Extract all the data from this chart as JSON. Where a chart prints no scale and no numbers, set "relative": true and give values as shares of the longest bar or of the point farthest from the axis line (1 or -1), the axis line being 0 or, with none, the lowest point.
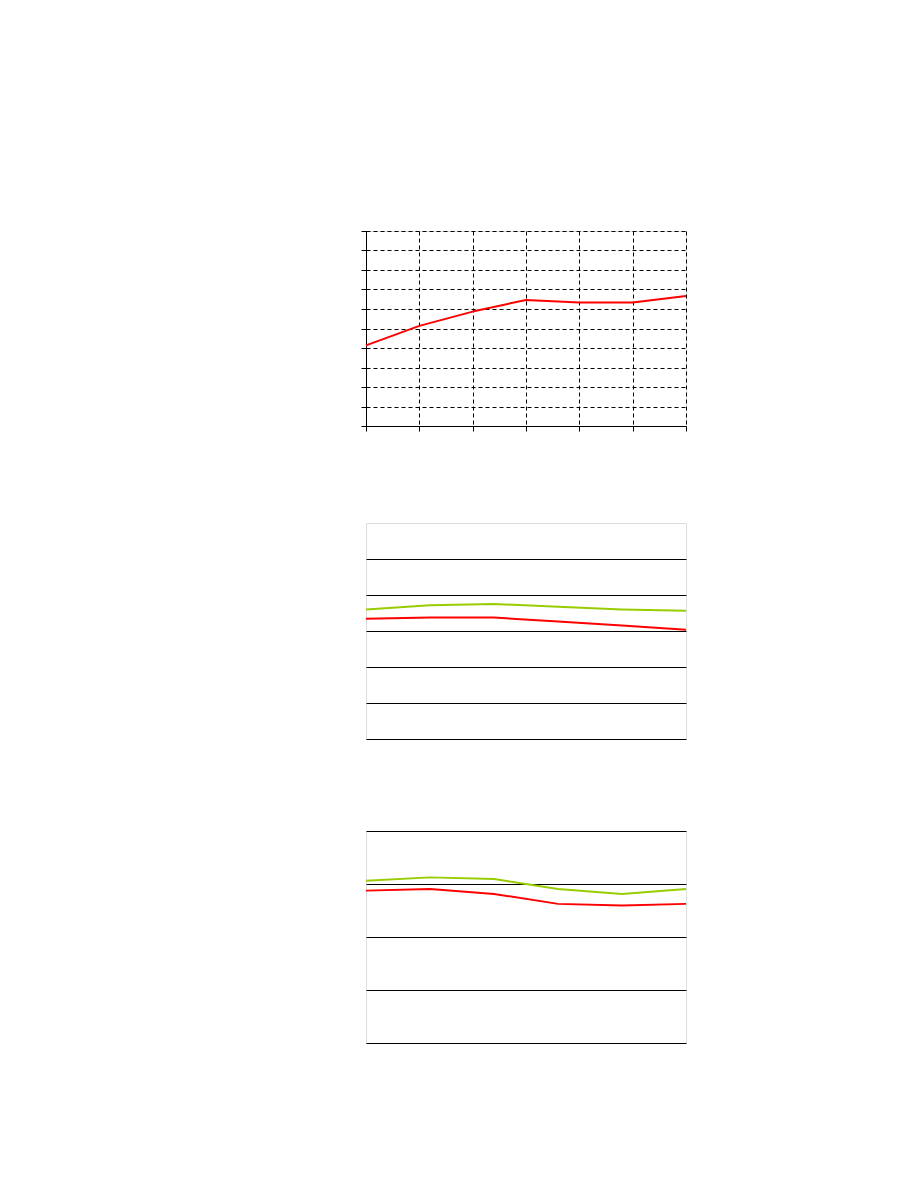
{
  "chart_data": [
    {
      "type": "line",
      "relative": true,
      "grid": true,
      "tick_labels": false,
      "categories": [
        null,
        null,
        null,
        null,
        null,
        null,
        null
      ],
      "series": [
        {
          "color": "#ff0000",
          "values": [
            0.62,
            0.77,
            0.88,
            0.97,
            0.95,
            0.95,
            1
          ]
        }
      ]
    },
    {
      "type": "line",
      "relative": true,
      "grid": "y",
      "tick_labels": false,
      "categories": [
        null,
        null,
        null,
        null,
        null,
        null
      ],
      "series": [
        {
          "color": "#99cc00",
          "values": [
            0.96,
            0.99,
            1,
            0.98,
            0.96,
            0.95
          ]
        },
        {
          "color": "#ff0000",
          "values": [
            0.89,
            0.9,
            0.9,
            0.87,
            0.84,
            0.81
          ]
        }
      ]
    },
    {
      "type": "line",
      "relative": true,
      "grid": "y",
      "tick_labels": false,
      "categories": [
        null,
        null,
        null,
        null,
        null,
        null
      ],
      "series": [
        {
          "color": "#99cc00",
          "values": [
            0.98,
            1,
            0.99,
            0.93,
            0.9,
            0.93
          ]
        },
        {
          "color": "#ff0000",
          "values": [
            0.92,
            0.93,
            0.9,
            0.84,
            0.83,
            0.84
          ]
        }
      ]
    }
  ]
}
